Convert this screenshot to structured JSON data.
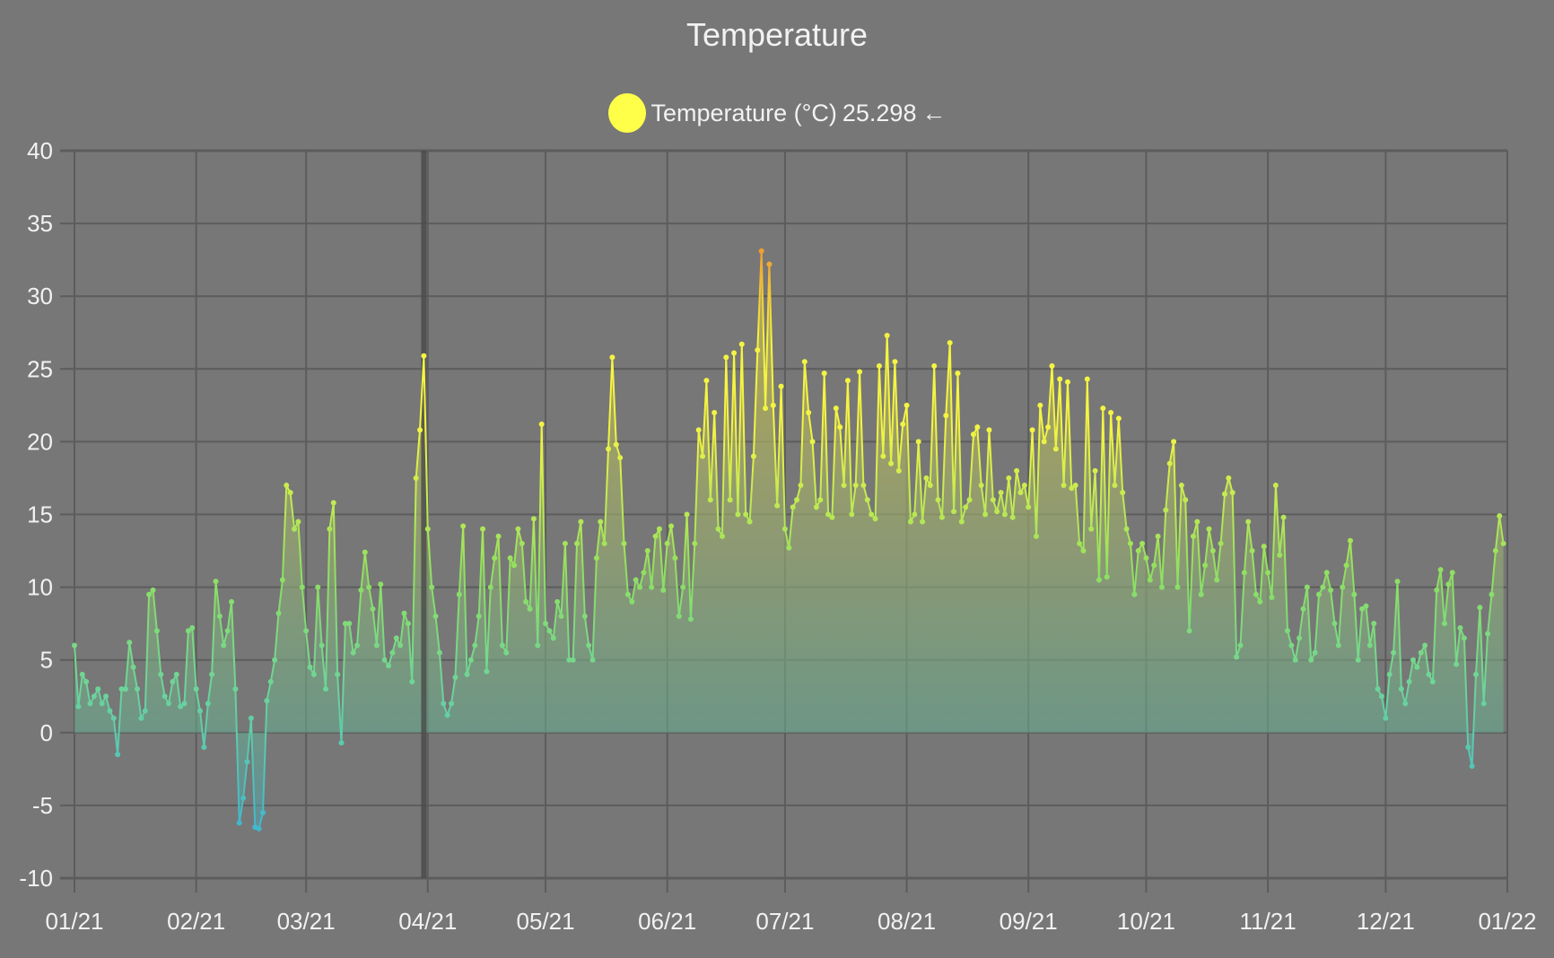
{
  "chart_data": {
    "type": "line",
    "title": "Temperature",
    "legend": {
      "label": "Temperature (°C)",
      "value": "25.298",
      "arrow": "←",
      "placement": "top",
      "color": "#ffff4a"
    },
    "xlabel": "",
    "ylabel": "",
    "ylim": [
      -10,
      40
    ],
    "yticks": [
      40,
      35,
      30,
      25,
      20,
      15,
      10,
      5,
      0,
      -5,
      -10
    ],
    "xlim": [
      "2021-01-01",
      "2022-01-01"
    ],
    "xticks": [
      "01/21",
      "02/21",
      "03/21",
      "04/21",
      "05/21",
      "06/21",
      "07/21",
      "08/21",
      "09/21",
      "10/21",
      "11/21",
      "12/21",
      "01/22"
    ],
    "grid": true,
    "fill": "to-zero",
    "crosshair_date": "2021-03-31",
    "colors": {
      "background": "#777777",
      "grid": "#5c5c5c",
      "cold": "#3fb6d0",
      "mild": "#8fe060",
      "warm": "#f4f442",
      "hot": "#f0a030"
    },
    "series": [
      {
        "name": "Temperature (°C)",
        "months": [
          {
            "month": "2021-01",
            "values": [
              6,
              1.8,
              4,
              3.5,
              2,
              2.5,
              3,
              2,
              2.5,
              1.5,
              1,
              -1.5,
              3,
              3,
              6.2,
              4.5,
              3,
              1,
              1.5,
              9.5,
              9.8,
              7,
              4,
              2.5,
              2,
              3.5,
              4,
              1.8,
              2,
              7,
              7.2
            ]
          },
          {
            "month": "2021-02",
            "values": [
              3,
              1.5,
              -1,
              2,
              4,
              10.4,
              8,
              6,
              7,
              9,
              3,
              -6.2,
              -4.5,
              -2,
              1,
              -6.5,
              -6.6,
              -5.5,
              2.2,
              3.5,
              5,
              8.2,
              10.5,
              17,
              16.5,
              14,
              14.5,
              10
            ]
          },
          {
            "month": "2021-03",
            "values": [
              7,
              4.5,
              4,
              10,
              6,
              3,
              14,
              15.8,
              4,
              -0.7,
              7.5,
              7.5,
              5.5,
              6,
              9.8,
              12.4,
              10,
              8.5,
              6,
              10.2,
              5,
              4.6,
              5.5,
              6.5,
              6,
              8.2,
              7.5,
              3.5,
              17.5,
              20.8,
              25.9
            ]
          },
          {
            "month": "2021-04",
            "values": [
              14,
              10,
              8,
              5.5,
              2,
              1.2,
              2,
              3.8,
              9.5,
              14.2,
              4,
              5,
              6,
              8,
              14,
              4.2,
              10,
              12,
              13.5,
              6,
              5.5,
              12,
              11.5,
              14,
              13,
              9,
              8.5,
              14.7,
              6,
              21.2
            ]
          },
          {
            "month": "2021-05",
            "values": [
              7.5,
              7,
              6.5,
              9,
              8,
              13,
              5,
              5,
              13,
              14.5,
              8,
              6,
              5,
              12,
              14.5,
              13,
              19.5,
              25.8,
              19.8,
              18.9,
              13,
              9.5,
              9,
              10.5,
              10,
              11,
              12.5,
              10,
              13.5,
              14,
              9.8
            ]
          },
          {
            "month": "2021-06",
            "values": [
              13,
              14.2,
              12,
              8,
              10,
              15,
              7.8,
              13,
              20.8,
              19,
              24.2,
              16,
              22,
              14,
              13.5,
              25.8,
              16,
              26.1,
              15,
              26.7,
              15,
              14.5,
              19,
              26.3,
              33.1,
              22.3,
              32.2,
              22.5,
              15.6,
              23.8
            ]
          },
          {
            "month": "2021-07",
            "values": [
              14,
              12.7,
              15.5,
              16,
              17,
              25.5,
              22,
              20,
              15.5,
              16,
              24.7,
              15,
              14.8,
              22.3,
              21,
              17,
              24.2,
              15,
              17,
              24.8,
              17,
              16,
              15,
              14.7,
              25.2,
              19,
              27.3,
              18.5,
              25.5,
              18,
              21.2
            ]
          },
          {
            "month": "2021-08",
            "values": [
              22.5,
              14.5,
              15,
              20,
              14.5,
              17.5,
              17,
              25.2,
              16,
              14.8,
              21.8,
              26.8,
              15.2,
              24.7,
              14.5,
              15.5,
              16,
              20.5,
              21,
              17,
              15,
              20.8,
              16,
              15.2,
              16.5,
              15,
              17.5,
              14.8,
              18,
              16.5,
              17
            ]
          },
          {
            "month": "2021-09",
            "values": [
              15.5,
              20.8,
              13.5,
              22.5,
              20,
              21,
              25.2,
              19.5,
              24.3,
              17,
              24.1,
              16.8,
              17,
              13,
              12.5,
              24.3,
              14,
              18,
              10.5,
              22.3,
              10.7,
              22,
              17,
              21.6,
              16.5,
              14,
              13,
              9.5,
              12.5,
              13
            ]
          },
          {
            "month": "2021-10",
            "values": [
              12,
              10.5,
              11.5,
              13.5,
              10,
              15.3,
              18.5,
              20,
              10,
              17,
              16,
              7,
              13.5,
              14.5,
              9.5,
              11.5,
              14,
              12.5,
              10.5,
              13,
              16.4,
              17.5,
              16.5,
              5.2,
              6,
              11,
              14.5,
              12.5,
              9.5,
              9,
              12.8
            ]
          },
          {
            "month": "2021-11",
            "values": [
              11,
              9.3,
              17,
              12.2,
              14.8,
              7,
              6,
              5,
              6.5,
              8.5,
              10,
              5,
              5.5,
              9.5,
              10,
              11,
              9.8,
              7.5,
              6,
              10,
              11.5,
              13.2,
              9.5,
              5,
              8.5,
              8.7,
              6,
              7.5,
              3,
              2.5
            ]
          },
          {
            "month": "2021-12",
            "values": [
              1,
              4,
              5.5,
              10.4,
              3,
              2,
              3.5,
              5,
              4.5,
              5.5,
              6,
              4,
              3.5,
              9.8,
              11.2,
              7.5,
              10.2,
              11,
              4.7,
              7.2,
              6.5,
              -1,
              -2.3,
              4,
              8.6,
              2,
              6.8,
              9.5,
              12.5,
              14.9,
              13
            ]
          }
        ]
      }
    ]
  }
}
